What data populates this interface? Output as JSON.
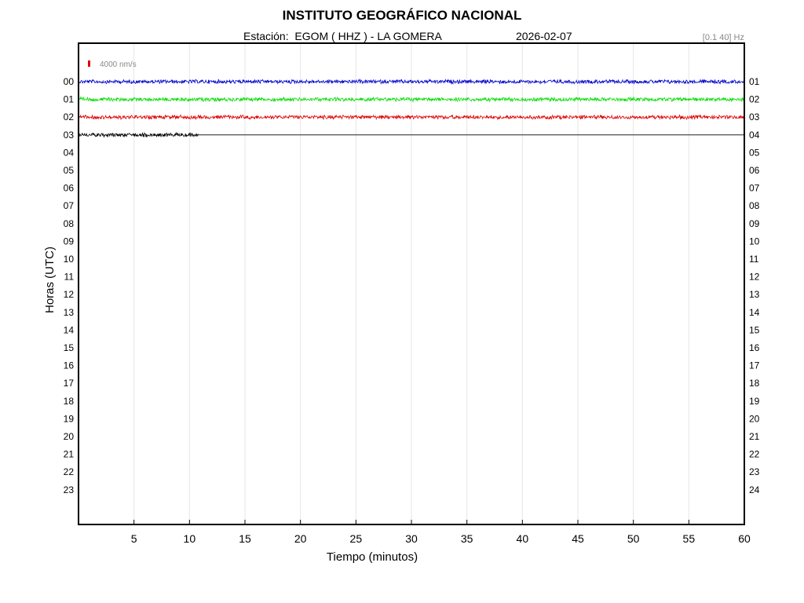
{
  "header": {
    "title": "INSTITUTO GEOGRÁFICO NACIONAL",
    "station_text": "Estación:  EGOM ( HHZ ) - LA GOMERA",
    "date": "2026-02-07",
    "band": "[0.1 40] Hz"
  },
  "chart_data": {
    "type": "line",
    "title": "INSTITUTO GEOGRÁFICO NACIONAL",
    "xlabel": "Tiempo (minutos)",
    "ylabel": "Horas (UTC)",
    "xlim": [
      0,
      60
    ],
    "x_ticks": [
      "5",
      "10",
      "15",
      "20",
      "25",
      "30",
      "35",
      "40",
      "45",
      "50",
      "55",
      "60"
    ],
    "left_ticks": [
      "00",
      "01",
      "02",
      "03",
      "04",
      "05",
      "06",
      "07",
      "08",
      "09",
      "10",
      "11",
      "12",
      "13",
      "14",
      "15",
      "16",
      "17",
      "18",
      "19",
      "20",
      "21",
      "22",
      "23"
    ],
    "right_ticks": [
      "01",
      "02",
      "03",
      "04",
      "05",
      "06",
      "07",
      "08",
      "09",
      "10",
      "11",
      "12",
      "13",
      "14",
      "15",
      "16",
      "17",
      "18",
      "19",
      "20",
      "21",
      "22",
      "23",
      "24"
    ],
    "grid": true,
    "scale_bar": {
      "label": "4000 nm/s",
      "color": "#e00000"
    },
    "series": [
      {
        "hour": "00",
        "start_min": 0,
        "end_min": 60,
        "color": "#0000cc"
      },
      {
        "hour": "01",
        "start_min": 0,
        "end_min": 60,
        "color": "#00dd00"
      },
      {
        "hour": "02",
        "start_min": 0,
        "end_min": 60,
        "color": "#dd0000"
      },
      {
        "hour": "03",
        "start_min": 0,
        "end_min": 10.8,
        "color": "#000000"
      }
    ]
  }
}
